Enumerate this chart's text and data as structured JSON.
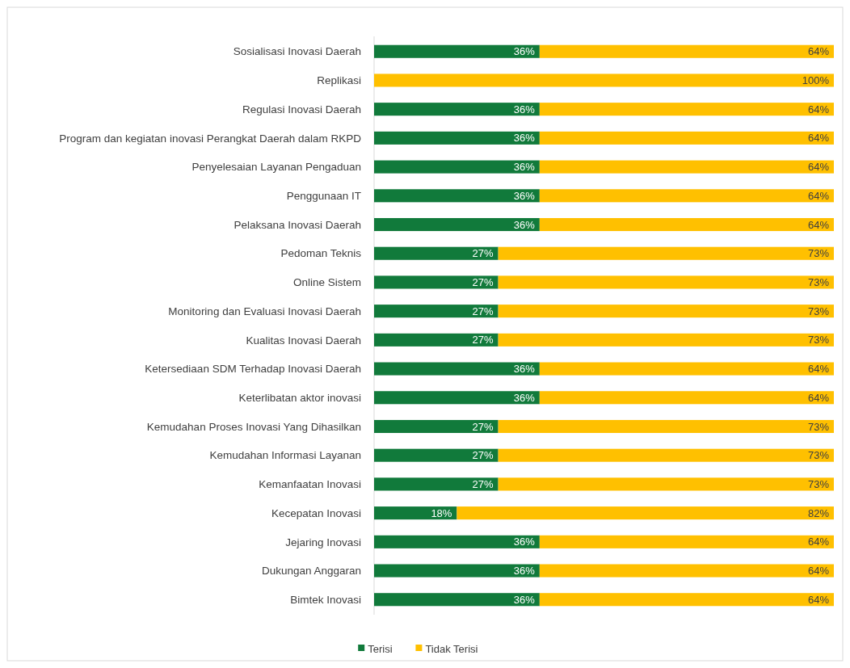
{
  "chart_data": {
    "type": "bar",
    "orientation": "horizontal",
    "stacked": true,
    "categories": [
      "Sosialisasi Inovasi Daerah",
      "Replikasi",
      "Regulasi Inovasi Daerah",
      "Program dan kegiatan inovasi Perangkat Daerah dalam RKPD",
      "Penyelesaian Layanan Pengaduan",
      "Penggunaan IT",
      "Pelaksana Inovasi Daerah",
      "Pedoman Teknis",
      "Online Sistem",
      "Monitoring dan Evaluasi Inovasi Daerah",
      "Kualitas Inovasi Daerah",
      "Ketersediaan SDM Terhadap Inovasi Daerah",
      "Keterlibatan aktor inovasi",
      "Kemudahan Proses Inovasi Yang Dihasilkan",
      "Kemudahan Informasi Layanan",
      "Kemanfaatan Inovasi",
      "Kecepatan Inovasi",
      "Jejaring Inovasi",
      "Dukungan Anggaran",
      "Bimtek Inovasi"
    ],
    "series": [
      {
        "name": "Terisi",
        "color": "#117a3b",
        "values": [
          36,
          0,
          36,
          36,
          36,
          36,
          36,
          27,
          27,
          27,
          27,
          36,
          36,
          27,
          27,
          27,
          18,
          36,
          36,
          36
        ],
        "value_labels": [
          "36%",
          null,
          "36%",
          "36%",
          "36%",
          "36%",
          "36%",
          "27%",
          "27%",
          "27%",
          "27%",
          "36%",
          "36%",
          "27%",
          "27%",
          "27%",
          "18%",
          "36%",
          "36%",
          "36%"
        ]
      },
      {
        "name": "Tidak Terisi",
        "color": "#ffc000",
        "values": [
          64,
          100,
          64,
          64,
          64,
          64,
          64,
          73,
          73,
          73,
          73,
          64,
          64,
          73,
          73,
          73,
          82,
          64,
          64,
          64
        ],
        "value_labels": [
          "64%",
          "100%",
          "64%",
          "64%",
          "64%",
          "64%",
          "64%",
          "73%",
          "73%",
          "73%",
          "73%",
          "64%",
          "64%",
          "73%",
          "73%",
          "73%",
          "82%",
          "64%",
          "64%",
          "64%"
        ]
      }
    ],
    "legend": "bottom"
  }
}
